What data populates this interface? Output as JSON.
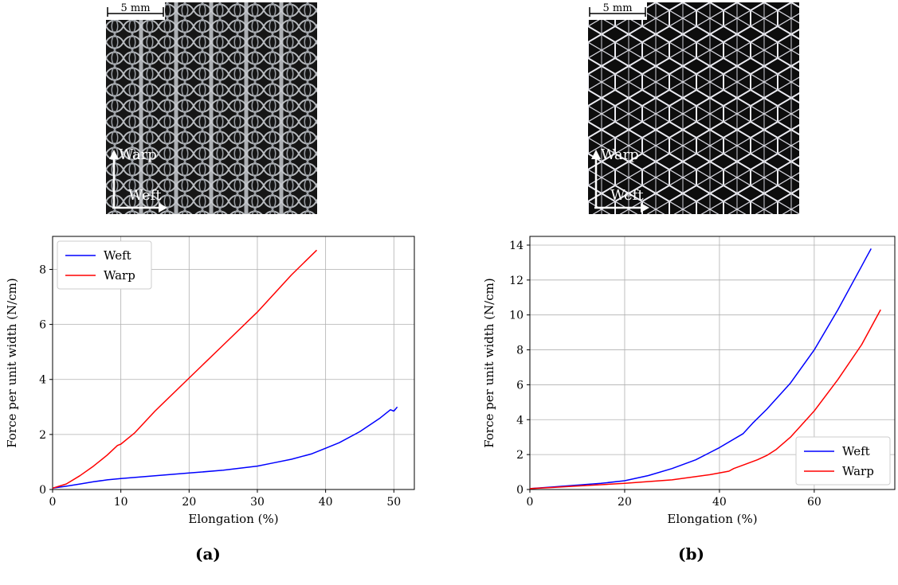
{
  "panels": [
    {
      "id": "a",
      "sublabel": "(a)",
      "photo": {
        "scale_label": "5 mm",
        "warp_label": "Warp",
        "weft_label": "Weft",
        "pattern": "vertical-chain-knit",
        "background": "#161616",
        "fiber_color": "#b9bcc0"
      },
      "chart_data": {
        "type": "line",
        "title": "",
        "xlabel": "Elongation (%)",
        "ylabel": "Force per unit width (N/cm)",
        "xlim": [
          0,
          53
        ],
        "ylim": [
          0,
          9.2
        ],
        "xticks": [
          0,
          10,
          20,
          30,
          40,
          50
        ],
        "yticks": [
          0,
          2,
          4,
          6,
          8
        ],
        "grid": true,
        "legend_position": "top-left",
        "series": [
          {
            "name": "Weft",
            "color": "#0000ff",
            "x": [
              0,
              2,
              4,
              6,
              8,
              10,
              15,
              20,
              25,
              30,
              32,
              35,
              38,
              40,
              42,
              45,
              48,
              49.5,
              50,
              50.5
            ],
            "y": [
              0.05,
              0.12,
              0.2,
              0.28,
              0.35,
              0.4,
              0.5,
              0.6,
              0.7,
              0.85,
              0.95,
              1.1,
              1.3,
              1.5,
              1.7,
              2.1,
              2.6,
              2.9,
              2.85,
              3.0
            ]
          },
          {
            "name": "Warp",
            "color": "#ff0000",
            "x": [
              0,
              2,
              4,
              6,
              8,
              9.5,
              10,
              12,
              15,
              20,
              25,
              30,
              35,
              38.7
            ],
            "y": [
              0.05,
              0.2,
              0.5,
              0.85,
              1.25,
              1.6,
              1.65,
              2.05,
              2.85,
              4.05,
              5.25,
              6.45,
              7.8,
              8.7
            ]
          }
        ]
      }
    },
    {
      "id": "b",
      "sublabel": "(b)",
      "photo": {
        "scale_label": "5 mm",
        "warp_label": "Warp",
        "weft_label": "Weft",
        "pattern": "hexagonal-net",
        "background": "#0d0d0d",
        "fiber_color": "#ececf2"
      },
      "chart_data": {
        "type": "line",
        "title": "",
        "xlabel": "Elongation (%)",
        "ylabel": "Force per unit width (N/cm)",
        "xlim": [
          0,
          77
        ],
        "ylim": [
          0,
          14.5
        ],
        "xticks": [
          0,
          20,
          40,
          60
        ],
        "yticks": [
          0,
          2,
          4,
          6,
          8,
          10,
          12,
          14
        ],
        "grid": true,
        "legend_position": "bottom-right",
        "series": [
          {
            "name": "Weft",
            "color": "#0000ff",
            "x": [
              0,
              5,
              10,
              15,
              20,
              25,
              30,
              35,
              40,
              45,
              47,
              50,
              55,
              60,
              65,
              70,
              71,
              72
            ],
            "y": [
              0.05,
              0.15,
              0.25,
              0.35,
              0.5,
              0.8,
              1.2,
              1.7,
              2.4,
              3.2,
              3.8,
              4.6,
              6.1,
              8.0,
              10.3,
              12.8,
              13.3,
              13.8
            ]
          },
          {
            "name": "Warp",
            "color": "#ff0000",
            "x": [
              0,
              5,
              10,
              20,
              30,
              38,
              42,
              43,
              45,
              48,
              50,
              52,
              55,
              60,
              65,
              70,
              74
            ],
            "y": [
              0.05,
              0.12,
              0.2,
              0.35,
              0.55,
              0.85,
              1.05,
              1.2,
              1.4,
              1.7,
              1.95,
              2.3,
              3.0,
              4.5,
              6.3,
              8.3,
              10.3
            ]
          }
        ]
      }
    }
  ]
}
